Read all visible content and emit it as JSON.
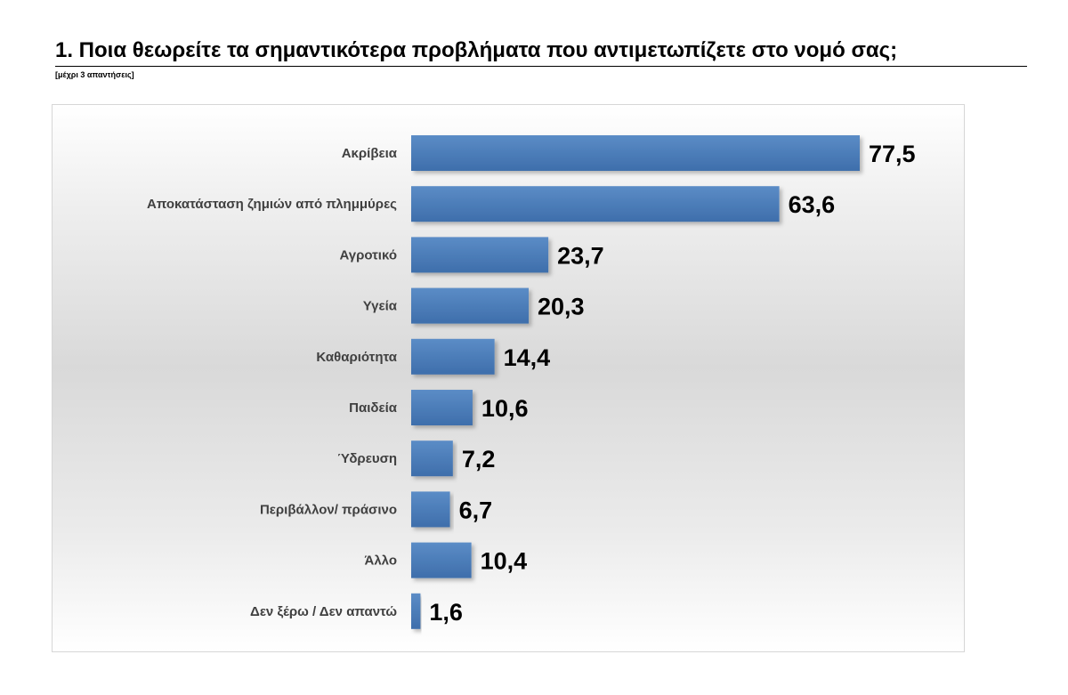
{
  "page": {
    "title": "1. Ποια θεωρείτε τα σημαντικότερα προβλήματα που αντιμετωπίζετε στο νομό σας;",
    "subtitle": "[μέχρι 3 απαντήσεις]"
  },
  "chart_data": {
    "type": "bar",
    "orientation": "horizontal",
    "categories": [
      "Ακρίβεια",
      "Αποκατάσταση ζημιών από πλημμύρες",
      "Αγροτικό",
      "Υγεία",
      "Καθαριότητα",
      "Παιδεία",
      "Ύδρευση",
      "Περιβάλλον/ πράσινο",
      "Άλλο",
      "Δεν ξέρω / Δεν απαντώ"
    ],
    "values": [
      77.5,
      63.6,
      23.7,
      20.3,
      14.4,
      10.6,
      7.2,
      6.7,
      10.4,
      1.6
    ],
    "value_labels": [
      "77,5",
      "63,6",
      "23,7",
      "20,3",
      "14,4",
      "10,6",
      "7,2",
      "6,7",
      "10,4",
      "1,6"
    ],
    "xlim": [
      0,
      80
    ],
    "grid": false,
    "legend": "none",
    "bar_color": "#4f81bd",
    "bar_color_dark": "#3a6aa3"
  }
}
